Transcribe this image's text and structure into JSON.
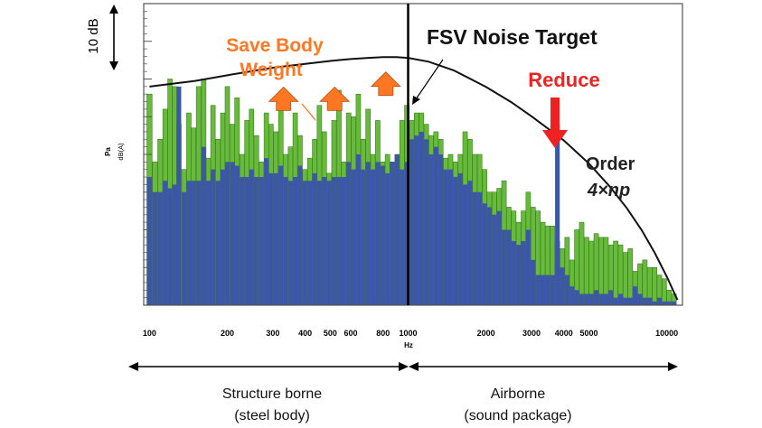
{
  "chart_data": {
    "type": "bar",
    "x_scale": "log",
    "xlim": [
      95,
      11500
    ],
    "ylim": [
      0,
      80
    ],
    "x_tick_values": [
      100,
      200,
      300,
      400,
      500,
      600,
      800,
      1000,
      2000,
      3000,
      4000,
      5000,
      10000
    ],
    "x_tick_labels": [
      "100",
      "200",
      "300",
      "400",
      "500",
      "600",
      "800",
      "1000",
      "2000",
      "3000",
      "4000",
      "5000",
      "10000"
    ],
    "xlabel": "Hz",
    "ylabel_unit": "Pa",
    "ylabel_weighting": "dB(A)",
    "scale_bar_label": "10 dB",
    "grid": false,
    "series": [
      {
        "color": "#66bb3a",
        "x": [
          100,
          105,
          110,
          115,
          120,
          125,
          130,
          136,
          142,
          148,
          155,
          162,
          169,
          176,
          184,
          192,
          200,
          209,
          218,
          228,
          238,
          248,
          259,
          271,
          283,
          295,
          308,
          322,
          336,
          351,
          366,
          382,
          399,
          417,
          435,
          454,
          474,
          495,
          517,
          540,
          564,
          589,
          615,
          642,
          670,
          700,
          731,
          763,
          797,
          832,
          869,
          907,
          947,
          989,
          1033,
          1078,
          1126,
          1176,
          1227,
          1282,
          1338,
          1397,
          1459,
          1524,
          1591,
          1661,
          1735,
          1811,
          1891,
          1975,
          2062,
          2153,
          2248,
          2348,
          2451,
          2560,
          2673,
          2791,
          2914,
          3043,
          3177,
          3318,
          3464,
          3617,
          3777,
          3944,
          4118,
          4300,
          4490,
          4689,
          4896,
          5112,
          5338,
          5574,
          5821,
          6078,
          6347,
          6627,
          6920,
          7226,
          7545,
          7879,
          8227,
          8591,
          8970,
          9367,
          9781,
          10213,
          10665
        ],
        "values": [
          56,
          38,
          44,
          52,
          60,
          58,
          48,
          36,
          51,
          47,
          58,
          60,
          39,
          53,
          44,
          51,
          58,
          48,
          55,
          40,
          49,
          52,
          45,
          38,
          51,
          48,
          46,
          53,
          40,
          42,
          51,
          45,
          36,
          39,
          44,
          53,
          46,
          35,
          49,
          57,
          38,
          51,
          50,
          56,
          44,
          52,
          40,
          49,
          38,
          40,
          38,
          40,
          49,
          53,
          49,
          51,
          51,
          48,
          45,
          46,
          44,
          39,
          40,
          38,
          40,
          46,
          44,
          40,
          40,
          36,
          30,
          30,
          31,
          33,
          26,
          25,
          22,
          25,
          30,
          26,
          25,
          22,
          21,
          21,
          17,
          15,
          18,
          12,
          20,
          22,
          18,
          17,
          19,
          18,
          18,
          16,
          17,
          16,
          14,
          15,
          9,
          11,
          12,
          10,
          10,
          8,
          7,
          4,
          3
        ]
      },
      {
        "color": "#3d57a8",
        "x": [
          100,
          105,
          110,
          115,
          120,
          125,
          130,
          136,
          142,
          148,
          155,
          162,
          169,
          176,
          184,
          192,
          200,
          209,
          218,
          228,
          238,
          248,
          259,
          271,
          283,
          295,
          308,
          322,
          336,
          351,
          366,
          382,
          399,
          417,
          435,
          454,
          474,
          495,
          517,
          540,
          564,
          589,
          615,
          642,
          670,
          700,
          731,
          763,
          797,
          832,
          869,
          907,
          947,
          989,
          1033,
          1078,
          1126,
          1176,
          1227,
          1282,
          1338,
          1397,
          1459,
          1524,
          1591,
          1661,
          1735,
          1811,
          1891,
          1975,
          2062,
          2153,
          2248,
          2348,
          2451,
          2560,
          2673,
          2791,
          2914,
          3043,
          3177,
          3318,
          3464,
          3617,
          3777,
          3944,
          4118,
          4300,
          4490,
          4689,
          4896,
          5112,
          5338,
          5574,
          5821,
          6078,
          6347,
          6627,
          6920,
          7226,
          7545,
          7879,
          8227,
          8591,
          8970,
          9367,
          9781,
          10213,
          10665
        ],
        "values": [
          34,
          30,
          30,
          33,
          31,
          32,
          58,
          30,
          33,
          33,
          33,
          42,
          33,
          36,
          33,
          36,
          38,
          38,
          37,
          34,
          34,
          36,
          34,
          34,
          39,
          35,
          35,
          37,
          34,
          33,
          34,
          37,
          33,
          33,
          35,
          33,
          34,
          33,
          34,
          34,
          34,
          38,
          36,
          40,
          36,
          38,
          36,
          38,
          37,
          35,
          38,
          40,
          36,
          38,
          44,
          45,
          46,
          44,
          40,
          42,
          40,
          36,
          36,
          34,
          35,
          32,
          33,
          30,
          30,
          27,
          26,
          24,
          25,
          20,
          20,
          17,
          16,
          17,
          20,
          12,
          8,
          8,
          8,
          8,
          48,
          10,
          8,
          5,
          4,
          3,
          3,
          3,
          4,
          3,
          3,
          4,
          2,
          3,
          2,
          2,
          5,
          3,
          2,
          2,
          1,
          2,
          1,
          1,
          1
        ]
      }
    ],
    "target_curve": {
      "x": [
        100,
        150,
        200,
        300,
        400,
        500,
        600,
        700,
        800,
        900,
        1000,
        1200,
        1500,
        2000,
        2500,
        3000,
        4000,
        5000,
        6000,
        7000,
        8000,
        9000,
        10000,
        11000
      ],
      "values": [
        58,
        59.5,
        61,
        63,
        64,
        64.8,
        65.3,
        65.6,
        65.8,
        65.8,
        65.6,
        64.6,
        62.3,
        57.9,
        53.9,
        50.1,
        43.7,
        37.6,
        31.6,
        25.8,
        19.9,
        13.8,
        7.6,
        1.4
      ]
    },
    "divider_x": 1000,
    "annotations": {
      "target_label": "FSV Noise Target",
      "save_weight_label": [
        "Save Body",
        "Weight"
      ],
      "save_arrows_x": [
        330,
        520,
        820
      ],
      "save_arrows_y": [
        55,
        55,
        59
      ],
      "reduce_label": "Reduce",
      "order_label": "Order",
      "order_expr": "4×np",
      "order_x": 3617
    },
    "regions": [
      {
        "label": "Structure borne",
        "sublabel": "(steel body)"
      },
      {
        "label": "Airborne",
        "sublabel": "(sound package)"
      }
    ],
    "colors": {
      "green": "#66bb3a",
      "blue": "#3d57a8",
      "orange": "#ff7722",
      "red": "#ee2222",
      "order_text": "#222222"
    }
  }
}
